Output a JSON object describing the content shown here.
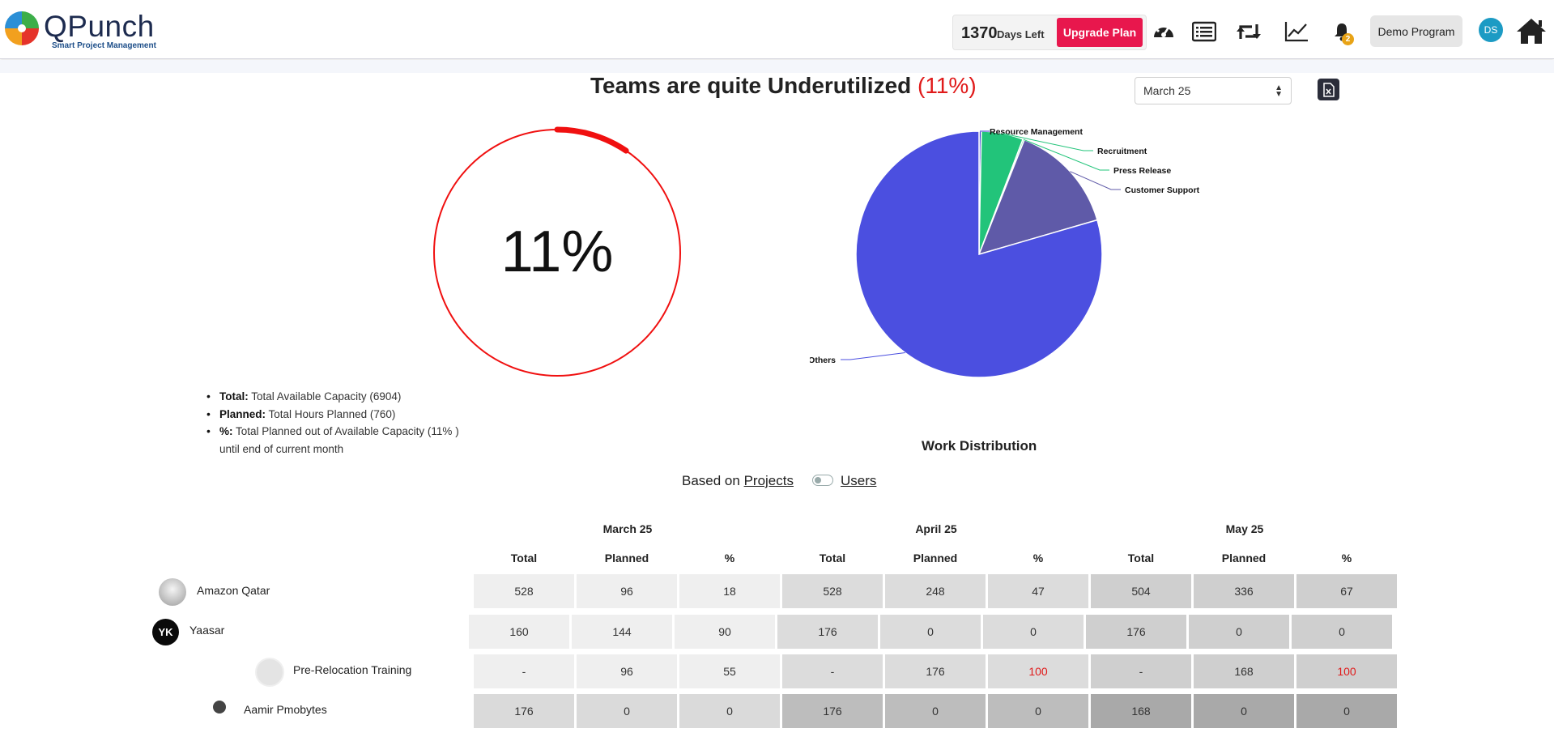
{
  "app": {
    "name": "QPunch",
    "tagline": "Smart Project Management"
  },
  "header": {
    "days_left_value": "1370",
    "days_left_label": "Days Left",
    "upgrade_label": "Upgrade Plan",
    "notification_count": "2",
    "program_label": "Demo Program",
    "user_initials": "DS",
    "icons": [
      "dashboard-gauge-icon",
      "list-icon",
      "retweet-icon",
      "line-chart-icon",
      "bell-icon",
      "home-icon"
    ]
  },
  "summary": {
    "headline_text": "Teams are quite Underutilized",
    "headline_pct": "(11%)",
    "month_selected": "March 25",
    "gauge_value": "11%",
    "gauge_fraction": 0.11,
    "legend": [
      {
        "key": "Total:",
        "text": "Total Available Capacity (6904)"
      },
      {
        "key": "Planned:",
        "text": "Total Hours Planned (760)"
      },
      {
        "key": "%:",
        "text": "Total Planned out of Available Capacity (11% ) until end of current month"
      }
    ]
  },
  "chart_data": {
    "type": "pie",
    "title": "Work Distribution",
    "slices": [
      {
        "label": "Resource Management",
        "value": 0.3,
        "color": "#3d3dd0"
      },
      {
        "label": "Recruitment",
        "value": 5.5,
        "color": "#22c47a"
      },
      {
        "label": "Press Release",
        "value": 0.2,
        "color": "#22c47a"
      },
      {
        "label": "Customer Support",
        "value": 14.5,
        "color": "#5f5aa8"
      },
      {
        "label": "Others",
        "value": 79.5,
        "color": "#4b4fe0"
      }
    ]
  },
  "basis": {
    "prefix": "Based on",
    "projects_label": "Projects",
    "users_label": "Users"
  },
  "table": {
    "months": [
      "March 25",
      "April 25",
      "May 25"
    ],
    "columns": [
      "Total",
      "Planned",
      "%"
    ],
    "rows": [
      {
        "name": "Amazon Qatar",
        "cells": [
          "528",
          "96",
          "18",
          "528",
          "248",
          "47",
          "504",
          "336",
          "67"
        ]
      },
      {
        "name": "Yaasar",
        "avatar": "YK",
        "cells": [
          "160",
          "144",
          "90",
          "176",
          "0",
          "0",
          "176",
          "0",
          "0"
        ]
      },
      {
        "name": "Pre-Relocation Training",
        "cells": [
          "-",
          "96",
          "55",
          "-",
          "176",
          "100",
          "-",
          "168",
          "100"
        ]
      },
      {
        "name": "Aamir Pmobytes",
        "cells": [
          "176",
          "0",
          "0",
          "176",
          "0",
          "0",
          "168",
          "0",
          "0"
        ]
      }
    ]
  },
  "colors": {
    "accent": "#e8174d",
    "danger": "#e01a1a",
    "gauge_ring": "#f01010",
    "header_border": "#d6d6de"
  }
}
